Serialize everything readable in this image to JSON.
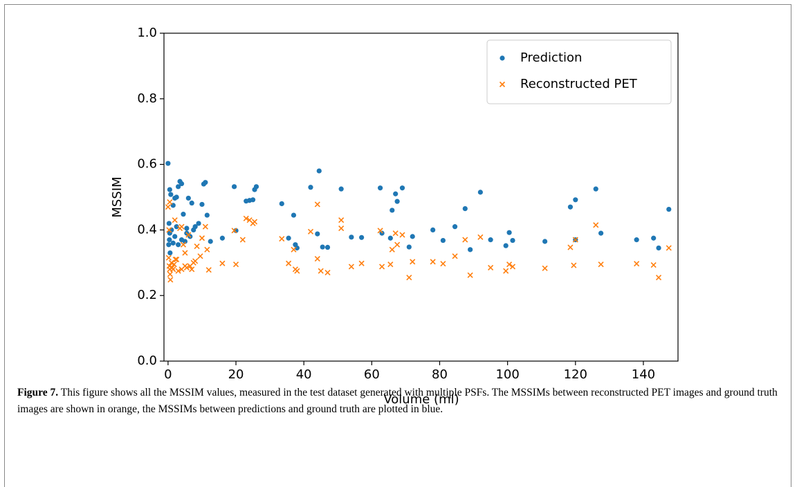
{
  "chart_data": {
    "type": "scatter",
    "xlabel": "Volume (ml)",
    "ylabel": "MSSIM",
    "xlim": [
      -1.2,
      150.2
    ],
    "ylim": [
      0,
      1
    ],
    "xticks": [
      0,
      20,
      40,
      60,
      80,
      100,
      120,
      140
    ],
    "yticks": [
      {
        "value": 0,
        "label": "0.0"
      },
      0.2,
      0.4,
      0.6,
      0.8,
      {
        "value": 1,
        "label": "1.0"
      }
    ],
    "legend": "upper right",
    "series": [
      {
        "name": "Prediction",
        "color": "#1f77b4",
        "marker": "circle",
        "x": [
          0,
          0.5,
          0.8,
          1.5,
          2,
          2.5,
          3,
          3.5,
          4,
          4.5,
          5.5,
          6,
          7,
          0.3,
          0.5,
          0.4,
          0.2,
          0.6,
          1,
          1.5,
          2,
          2.5,
          3,
          4,
          5,
          5.5,
          6.5,
          7.5,
          8,
          9,
          10,
          10.5,
          11,
          11.5,
          12.5,
          16,
          19.5,
          20,
          23,
          24,
          25,
          25.5,
          26,
          33.5,
          35.5,
          37,
          37.5,
          38,
          42,
          44,
          44.5,
          45.5,
          47,
          51,
          54,
          57,
          62.5,
          63,
          65.5,
          66,
          67,
          67.5,
          69,
          71,
          72,
          78,
          81,
          84.5,
          87.5,
          89,
          92,
          95,
          99.5,
          100.5,
          101.5,
          111,
          118.5,
          120,
          120,
          126,
          127.5,
          138,
          143,
          144.5,
          147.5
        ],
        "values": [
          0.603,
          0.523,
          0.508,
          0.475,
          0.497,
          0.5,
          0.532,
          0.548,
          0.541,
          0.448,
          0.405,
          0.497,
          0.482,
          0.42,
          0.39,
          0.37,
          0.355,
          0.33,
          0.4,
          0.36,
          0.38,
          0.41,
          0.355,
          0.37,
          0.365,
          0.39,
          0.38,
          0.4,
          0.41,
          0.42,
          0.478,
          0.54,
          0.545,
          0.445,
          0.365,
          0.375,
          0.532,
          0.398,
          0.488,
          0.49,
          0.492,
          0.523,
          0.532,
          0.48,
          0.375,
          0.445,
          0.355,
          0.345,
          0.53,
          0.388,
          0.58,
          0.348,
          0.347,
          0.525,
          0.378,
          0.377,
          0.528,
          0.39,
          0.375,
          0.46,
          0.51,
          0.487,
          0.528,
          0.348,
          0.38,
          0.4,
          0.368,
          0.41,
          0.465,
          0.34,
          0.515,
          0.37,
          0.352,
          0.392,
          0.368,
          0.365,
          0.47,
          0.492,
          0.37,
          0.525,
          0.39,
          0.37,
          0.375,
          0.345,
          0.463
        ]
      },
      {
        "name": "Reconstructed PET",
        "color": "#ff7f0e",
        "marker": "x",
        "x": [
          0,
          0.5,
          0.3,
          0.2,
          0.4,
          0.5,
          0.6,
          0.7,
          1,
          1.2,
          1.5,
          1.8,
          2,
          2.2,
          2.5,
          3,
          3.5,
          4,
          4,
          4.5,
          5,
          5,
          5.5,
          6,
          6.5,
          7,
          7.5,
          8,
          8.5,
          9.5,
          10,
          11,
          11.5,
          12,
          16,
          19.5,
          20,
          22,
          23,
          24,
          25,
          25.5,
          33.5,
          35.5,
          37,
          37.5,
          38,
          42,
          44,
          44,
          45,
          47,
          51,
          51,
          54,
          57,
          62.5,
          63,
          65.5,
          66,
          67,
          67.5,
          69,
          71,
          72,
          78,
          81,
          84.5,
          87.5,
          89,
          92,
          95,
          99.5,
          100.5,
          101.5,
          111,
          118.5,
          119.5,
          120,
          126,
          127.5,
          138,
          143,
          144.5,
          147.5
        ],
        "values": [
          0.47,
          0.485,
          0.4,
          0.315,
          0.29,
          0.28,
          0.265,
          0.248,
          0.3,
          0.285,
          0.28,
          0.295,
          0.43,
          0.31,
          0.31,
          0.275,
          0.405,
          0.41,
          0.28,
          0.355,
          0.29,
          0.33,
          0.285,
          0.385,
          0.29,
          0.28,
          0.3,
          0.305,
          0.35,
          0.32,
          0.375,
          0.41,
          0.34,
          0.278,
          0.298,
          0.398,
          0.295,
          0.37,
          0.435,
          0.43,
          0.42,
          0.425,
          0.373,
          0.298,
          0.34,
          0.28,
          0.275,
          0.395,
          0.312,
          0.478,
          0.275,
          0.27,
          0.43,
          0.405,
          0.288,
          0.298,
          0.398,
          0.288,
          0.295,
          0.34,
          0.39,
          0.355,
          0.385,
          0.255,
          0.303,
          0.303,
          0.297,
          0.32,
          0.37,
          0.262,
          0.378,
          0.285,
          0.275,
          0.295,
          0.288,
          0.283,
          0.347,
          0.292,
          0.37,
          0.415,
          0.295,
          0.297,
          0.293,
          0.255,
          0.345
        ]
      }
    ]
  },
  "caption": {
    "label": "Figure 7.",
    "text": "This figure shows all the MSSIM values, measured in the test dataset generated with multiple PSFs. The MSSIMs between reconstructed PET images and ground truth images are shown in orange, the MSSIMs between predictions and ground truth are plotted in blue."
  }
}
